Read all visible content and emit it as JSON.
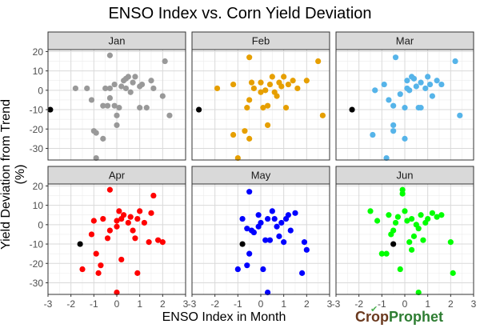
{
  "chart_data": {
    "type": "scatter",
    "title": "ENSO Index vs. Corn Yield Deviation",
    "xlabel": "ENSO Index in Month",
    "ylabel": "Yield Deviation from Trend (%)",
    "facets": [
      "Jan",
      "Feb",
      "Mar",
      "Apr",
      "May",
      "Jun"
    ],
    "facet_colors": {
      "Jan": "#999999",
      "Feb": "#E69F00",
      "Mar": "#56B4E9",
      "Apr": "#FF0000",
      "May": "#0000FF",
      "Jun": "#00FF00"
    },
    "highlight_color": "#000000",
    "xlim": [
      -3,
      3
    ],
    "ylim": [
      -36,
      21
    ],
    "x_ticks": [
      -3,
      -2,
      -1,
      0,
      1,
      2,
      3
    ],
    "y_ticks": [
      -30,
      -20,
      -10,
      0,
      10,
      20
    ],
    "grid": true,
    "panel_strip_color": "#d9d9d9",
    "panel_border_color": "#333333",
    "gridline_color": "#d9d9d9",
    "series": [
      {
        "facet": "Jan",
        "points": [
          [
            -0.9,
            -35
          ],
          [
            -0.9,
            -22
          ],
          [
            -1.0,
            -21
          ],
          [
            -0.6,
            -8
          ],
          [
            -0.6,
            -25
          ],
          [
            -0.5,
            1
          ],
          [
            -0.3,
            1
          ],
          [
            -0.3,
            -4
          ],
          [
            -0.1,
            3
          ],
          [
            -0.1,
            -8
          ],
          [
            0.0,
            -13
          ],
          [
            0.0,
            -18
          ],
          [
            0.1,
            -9
          ],
          [
            0.2,
            2
          ],
          [
            0.3,
            5
          ],
          [
            0.4,
            6
          ],
          [
            0.4,
            1
          ],
          [
            0.5,
            7
          ],
          [
            0.6,
            -1
          ],
          [
            0.7,
            4
          ],
          [
            0.8,
            7
          ],
          [
            1.0,
            2
          ],
          [
            1.0,
            -9
          ],
          [
            1.1,
            3
          ],
          [
            1.3,
            -9
          ],
          [
            1.5,
            5
          ],
          [
            1.6,
            1
          ],
          [
            2.0,
            -3
          ],
          [
            2.1,
            15
          ],
          [
            2.3,
            -13
          ],
          [
            -1.3,
            1
          ],
          [
            -1.1,
            -5
          ],
          [
            -0.3,
            18
          ],
          [
            -1.8,
            1
          ],
          [
            -0.4,
            -8
          ]
        ],
        "highlight": [
          -2.9,
          -10
        ]
      },
      {
        "facet": "Feb",
        "points": [
          [
            -1.0,
            -35
          ],
          [
            -1.2,
            -23
          ],
          [
            -0.7,
            -21
          ],
          [
            -0.5,
            -5
          ],
          [
            -0.5,
            -25
          ],
          [
            -0.3,
            1
          ],
          [
            -0.4,
            4
          ],
          [
            0.0,
            -1
          ],
          [
            0.0,
            4
          ],
          [
            0.3,
            -8
          ],
          [
            0.3,
            -18
          ],
          [
            0.5,
            7
          ],
          [
            0.6,
            -1
          ],
          [
            0.8,
            4
          ],
          [
            0.9,
            2
          ],
          [
            1.0,
            7
          ],
          [
            1.1,
            -9
          ],
          [
            1.2,
            3
          ],
          [
            1.6,
            1
          ],
          [
            2.0,
            5
          ],
          [
            2.5,
            15
          ],
          [
            2.7,
            -13
          ],
          [
            -1.2,
            3
          ],
          [
            -0.5,
            17
          ],
          [
            -0.6,
            -9
          ],
          [
            -1.9,
            1
          ],
          [
            0.4,
            3
          ],
          [
            0.7,
            -3
          ],
          [
            0.1,
            -9
          ],
          [
            1.4,
            5
          ],
          [
            0.2,
            0
          ]
        ],
        "highlight": [
          -2.7,
          -10
        ]
      },
      {
        "facet": "Mar",
        "points": [
          [
            -0.8,
            -35
          ],
          [
            -1.4,
            -23
          ],
          [
            -0.5,
            -21
          ],
          [
            -0.5,
            -8
          ],
          [
            0.0,
            -25
          ],
          [
            0.1,
            1
          ],
          [
            0.1,
            5
          ],
          [
            0.3,
            7
          ],
          [
            0.4,
            6
          ],
          [
            0.5,
            2
          ],
          [
            0.6,
            -9
          ],
          [
            0.7,
            -9
          ],
          [
            0.7,
            4
          ],
          [
            1.0,
            7
          ],
          [
            1.1,
            3
          ],
          [
            1.2,
            -3
          ],
          [
            1.6,
            3
          ],
          [
            2.2,
            15
          ],
          [
            2.4,
            -13
          ],
          [
            -0.4,
            17
          ],
          [
            -0.5,
            -18
          ],
          [
            -0.7,
            -5
          ],
          [
            -1.3,
            0
          ],
          [
            -0.9,
            3
          ],
          [
            0.2,
            0
          ],
          [
            0.0,
            -9
          ],
          [
            0.9,
            1
          ],
          [
            1.4,
            5
          ],
          [
            -0.2,
            -2
          ]
        ],
        "highlight": [
          -2.3,
          -10
        ]
      },
      {
        "facet": "Apr",
        "points": [
          [
            0.0,
            -35
          ],
          [
            -1.5,
            -23
          ],
          [
            -0.8,
            -25
          ],
          [
            0.9,
            -25
          ],
          [
            0.2,
            -18
          ],
          [
            -0.7,
            -21
          ],
          [
            -0.9,
            -15
          ],
          [
            -0.4,
            -7
          ],
          [
            0.0,
            -1
          ],
          [
            0.0,
            2
          ],
          [
            0.1,
            7
          ],
          [
            0.3,
            5
          ],
          [
            0.5,
            1
          ],
          [
            0.6,
            4
          ],
          [
            0.7,
            -3
          ],
          [
            0.8,
            -7
          ],
          [
            1.0,
            7
          ],
          [
            1.2,
            1
          ],
          [
            1.4,
            -9
          ],
          [
            1.6,
            15
          ],
          [
            1.8,
            -8
          ],
          [
            2.0,
            -9
          ],
          [
            -0.3,
            18
          ],
          [
            -0.3,
            -3
          ],
          [
            -1.0,
            2
          ],
          [
            -0.6,
            3
          ],
          [
            1.5,
            6
          ],
          [
            0.9,
            3
          ],
          [
            -1.1,
            -5
          ],
          [
            0.2,
            3
          ]
        ],
        "highlight": [
          -1.6,
          -10
        ]
      },
      {
        "facet": "May",
        "points": [
          [
            0.3,
            -35
          ],
          [
            -1.0,
            -23
          ],
          [
            0.1,
            -23
          ],
          [
            1.8,
            -25
          ],
          [
            -0.5,
            -15
          ],
          [
            -0.6,
            -21
          ],
          [
            -0.4,
            -3
          ],
          [
            -0.1,
            5
          ],
          [
            0.0,
            1
          ],
          [
            0.2,
            -8
          ],
          [
            0.3,
            3
          ],
          [
            0.5,
            7
          ],
          [
            0.6,
            3
          ],
          [
            0.7,
            -1
          ],
          [
            0.9,
            1
          ],
          [
            1.0,
            -9
          ],
          [
            1.1,
            3
          ],
          [
            1.3,
            -3
          ],
          [
            1.5,
            6
          ],
          [
            1.9,
            -9
          ],
          [
            2.0,
            -13
          ],
          [
            -0.5,
            17
          ],
          [
            -0.8,
            3
          ],
          [
            -0.6,
            -2
          ],
          [
            0.4,
            -8
          ],
          [
            -0.3,
            -4
          ],
          [
            0.8,
            -6
          ],
          [
            1.2,
            5
          ],
          [
            -0.1,
            -1
          ]
        ],
        "highlight": [
          -0.8,
          -10
        ]
      },
      {
        "facet": "Jun",
        "points": [
          [
            0.6,
            -35
          ],
          [
            -0.2,
            -23
          ],
          [
            2.1,
            -25
          ],
          [
            -0.8,
            -15
          ],
          [
            -1.0,
            -15
          ],
          [
            -0.5,
            -3
          ],
          [
            -0.4,
            1
          ],
          [
            -0.3,
            4
          ],
          [
            0.0,
            7
          ],
          [
            0.1,
            2
          ],
          [
            0.2,
            -9
          ],
          [
            0.3,
            3
          ],
          [
            0.4,
            -6
          ],
          [
            0.5,
            0
          ],
          [
            0.6,
            -2
          ],
          [
            0.7,
            5
          ],
          [
            0.8,
            -8
          ],
          [
            0.9,
            1
          ],
          [
            1.0,
            3
          ],
          [
            1.2,
            6
          ],
          [
            1.4,
            4
          ],
          [
            2.0,
            -9
          ],
          [
            -0.1,
            18
          ],
          [
            -0.1,
            16
          ],
          [
            -1.5,
            7
          ],
          [
            -1.2,
            2
          ],
          [
            -0.6,
            -5
          ],
          [
            -0.7,
            5
          ],
          [
            0.3,
            -13
          ],
          [
            1.6,
            5
          ]
        ],
        "highlight": [
          -0.5,
          -10
        ]
      }
    ],
    "legend": "none"
  },
  "logo": {
    "part1": "Crop",
    "part2": "Prophet"
  }
}
